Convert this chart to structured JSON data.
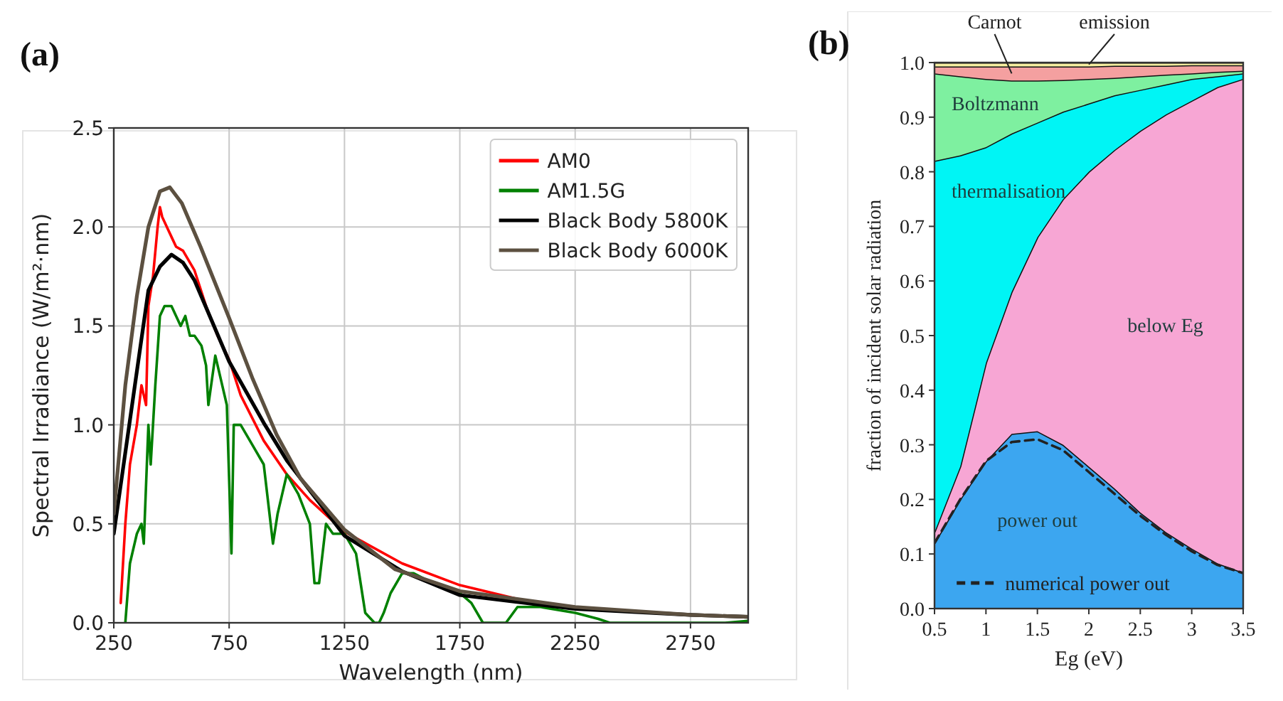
{
  "chart_data": [
    {
      "type": "line",
      "title": "(a)",
      "xlabel": "Wavelength (nm)",
      "ylabel": "Spectral Irradiance (W/m²·nm)",
      "xlim": [
        250,
        3000
      ],
      "xticks": [
        250,
        750,
        1250,
        1750,
        2250,
        2750
      ],
      "ylim": [
        0,
        2.5
      ],
      "yticks": [
        {
          "value": 0,
          "label": "0.0"
        },
        0.5,
        {
          "value": 1,
          "label": "1.0"
        },
        1.5,
        {
          "value": 2,
          "label": "2.0"
        },
        2.5
      ],
      "grid": true,
      "legend": "top right",
      "series": [
        {
          "name": "AM0",
          "color": "#ff0000",
          "x": [
            280,
            300,
            320,
            350,
            370,
            390,
            400,
            420,
            440,
            450,
            460,
            480,
            500,
            520,
            550,
            600,
            650,
            700,
            750,
            800,
            900,
            1000,
            1100,
            1250,
            1500,
            1750,
            2000
          ],
          "values": [
            0.1,
            0.5,
            0.8,
            1.0,
            1.2,
            1.1,
            1.6,
            1.75,
            2.0,
            2.1,
            2.05,
            2.0,
            1.95,
            1.9,
            1.88,
            1.78,
            1.6,
            1.45,
            1.33,
            1.15,
            0.92,
            0.75,
            0.62,
            0.46,
            0.3,
            0.19,
            0.12
          ]
        },
        {
          "name": "AM1.5G",
          "color": "#008000",
          "x": [
            300,
            320,
            350,
            370,
            380,
            400,
            410,
            430,
            450,
            470,
            500,
            520,
            540,
            560,
            580,
            600,
            630,
            650,
            660,
            690,
            720,
            740,
            760,
            770,
            800,
            850,
            900,
            940,
            960,
            1000,
            1050,
            1100,
            1120,
            1140,
            1170,
            1200,
            1250,
            1300,
            1340,
            1380,
            1400,
            1420,
            1450,
            1500,
            1550,
            1600,
            1750,
            1800,
            1850,
            1950,
            2000,
            2100,
            2250,
            2350,
            2400,
            2900,
            3000
          ],
          "values": [
            0,
            0.3,
            0.45,
            0.5,
            0.4,
            1.0,
            0.8,
            1.2,
            1.55,
            1.6,
            1.6,
            1.55,
            1.5,
            1.55,
            1.45,
            1.45,
            1.4,
            1.3,
            1.1,
            1.35,
            1.2,
            1.1,
            0.35,
            1.0,
            1.0,
            0.9,
            0.8,
            0.4,
            0.55,
            0.75,
            0.65,
            0.5,
            0.2,
            0.2,
            0.5,
            0.45,
            0.45,
            0.35,
            0.05,
            0,
            0,
            0.05,
            0.15,
            0.25,
            0.25,
            0.22,
            0.15,
            0.1,
            0,
            0,
            0.08,
            0.08,
            0.05,
            0.02,
            0,
            0,
            0.01
          ]
        },
        {
          "name": "Black Body 5800K",
          "color": "#000000",
          "x": [
            250,
            400,
            450,
            500,
            550,
            600,
            750,
            900,
            1000,
            1250,
            1500,
            1750,
            2250,
            2750,
            3000
          ],
          "values": [
            0.45,
            1.68,
            1.8,
            1.86,
            1.82,
            1.73,
            1.32,
            1.01,
            0.82,
            0.44,
            0.26,
            0.14,
            0.07,
            0.04,
            0.03
          ]
        },
        {
          "name": "Black Body 6000K",
          "color": "#5c5040",
          "x": [
            250,
            300,
            350,
            400,
            450,
            493,
            545,
            626,
            750,
            853,
            956,
            1059,
            1250,
            1470,
            1750,
            2250,
            2750,
            3000
          ],
          "values": [
            0.55,
            1.2,
            1.65,
            2.0,
            2.18,
            2.2,
            2.12,
            1.9,
            1.54,
            1.23,
            0.95,
            0.73,
            0.47,
            0.27,
            0.16,
            0.08,
            0.04,
            0.03
          ]
        }
      ]
    },
    {
      "type": "area",
      "stacked": true,
      "title": "(b)",
      "xlabel": "Eg (eV)",
      "ylabel": "fraction of incident solar radiation",
      "xlim": [
        0.5,
        3.5
      ],
      "xticks": [
        0.5,
        1,
        1.5,
        2,
        2.5,
        3,
        3.5
      ],
      "ylim": [
        0,
        1
      ],
      "yticks": [
        {
          "value": 0,
          "label": "0.0"
        },
        0.1,
        0.2,
        0.3,
        0.4,
        0.5,
        0.6,
        0.7,
        0.8,
        0.9,
        {
          "value": 1,
          "label": "1.0"
        }
      ],
      "legend": "bottom",
      "x": [
        0.5,
        0.75,
        1,
        1.25,
        1.5,
        1.75,
        2,
        2.25,
        2.5,
        2.75,
        3,
        3.25,
        3.5
      ],
      "series": [
        {
          "name": "power out",
          "color": "#3ca6f0",
          "values": [
            0.12,
            0.2,
            0.27,
            0.32,
            0.325,
            0.3,
            0.26,
            0.22,
            0.176,
            0.14,
            0.11,
            0.083,
            0.066
          ]
        },
        {
          "name": "below Eg",
          "color": "#f7a6d4",
          "values": [
            0.02,
            0.06,
            0.18,
            0.26,
            0.355,
            0.45,
            0.54,
            0.62,
            0.699,
            0.765,
            0.82,
            0.872,
            0.904
          ]
        },
        {
          "name": "thermalisation",
          "color": "#00f5f5",
          "values": [
            0.68,
            0.57,
            0.395,
            0.29,
            0.21,
            0.16,
            0.125,
            0.1,
            0.075,
            0.055,
            0.04,
            0.02,
            0.01
          ]
        },
        {
          "name": "Boltzmann",
          "color": "#7ef0a0",
          "values": [
            0.16,
            0.145,
            0.125,
            0.097,
            0.077,
            0.058,
            0.045,
            0.032,
            0.025,
            0.018,
            0.01,
            0.008,
            0.005
          ]
        },
        {
          "name": "Carnot",
          "color": "#f4a0a0",
          "values": [
            0.013,
            0.018,
            0.023,
            0.026,
            0.026,
            0.025,
            0.023,
            0.022,
            0.019,
            0.016,
            0.015,
            0.012,
            0.01
          ]
        },
        {
          "name": "emission",
          "color": "#f6eea0",
          "values": [
            0.007,
            0.007,
            0.007,
            0.007,
            0.007,
            0.007,
            0.007,
            0.006,
            0.006,
            0.006,
            0.005,
            0.005,
            0.005
          ]
        },
        {
          "name": "numerical power out",
          "type": "line",
          "line_style": "dashed",
          "color": "#222222",
          "values": [
            0.12,
            0.2,
            0.27,
            0.305,
            0.31,
            0.29,
            0.25,
            0.21,
            0.17,
            0.135,
            0.105,
            0.08,
            0.065
          ]
        }
      ]
    }
  ]
}
